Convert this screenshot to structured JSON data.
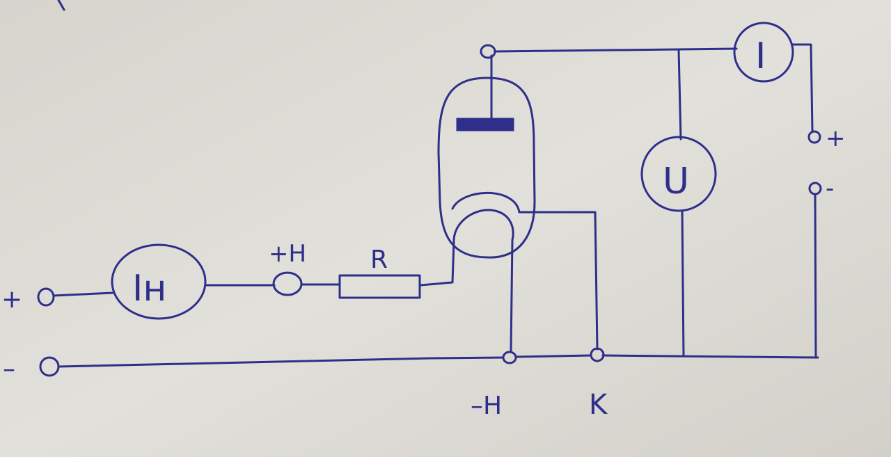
{
  "labels": {
    "source_plus": "+",
    "source_minus": "–",
    "heater_ammeter": "Iн",
    "plus_h": "+H",
    "resistor": "R",
    "minus_h": "–H",
    "cathode": "K",
    "voltmeter": "U",
    "anode_ammeter": "I",
    "anode_plus": "+",
    "anode_minus": "-"
  },
  "colors": {
    "ink": "#2e2f8a",
    "paper": "#dcdad3"
  }
}
